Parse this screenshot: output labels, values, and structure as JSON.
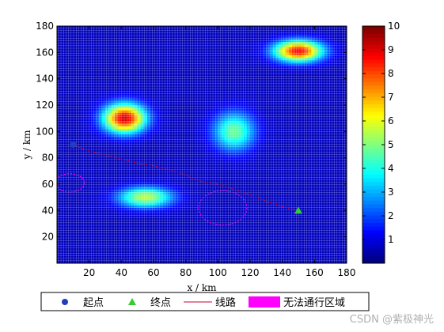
{
  "chart_data": {
    "type": "heatmap",
    "title": "",
    "xlabel": "x / km",
    "ylabel": "y / km",
    "xlim": [
      0,
      180
    ],
    "ylim": [
      0,
      180
    ],
    "xticks": [
      20,
      40,
      60,
      80,
      100,
      120,
      140,
      160,
      180
    ],
    "yticks": [
      20,
      40,
      60,
      80,
      100,
      120,
      140,
      160,
      180
    ],
    "grid": "dense white grid overlay",
    "colormap": "jet",
    "colorbar": {
      "min": 0,
      "max": 10,
      "ticks": [
        1,
        2,
        3,
        4,
        5,
        6,
        7,
        8,
        9,
        10
      ]
    },
    "peaks": [
      {
        "x": 42,
        "y": 110,
        "value": 9.2,
        "sx": 13,
        "sy": 11
      },
      {
        "x": 150,
        "y": 161,
        "value": 8.8,
        "sx": 15,
        "sy": 8
      },
      {
        "x": 110,
        "y": 100,
        "value": 4.8,
        "sx": 13,
        "sy": 15
      },
      {
        "x": 55,
        "y": 50,
        "value": 5.6,
        "sx": 17,
        "sy": 8
      }
    ],
    "start_point": {
      "x": 10,
      "y": 90
    },
    "end_point": {
      "x": 150,
      "y": 40
    },
    "route": {
      "x": [
        10,
        20,
        30,
        40,
        50,
        60,
        70,
        80,
        90,
        100,
        110,
        120,
        130,
        140,
        150
      ],
      "y": [
        90,
        85,
        82,
        79,
        76,
        74,
        71,
        67,
        62,
        60,
        56,
        52,
        47,
        43,
        40
      ]
    },
    "no_go_zones": [
      {
        "cx": 8,
        "cy": 61,
        "rx": 9,
        "ry": 7
      },
      {
        "cx": 103,
        "cy": 42,
        "rx": 15,
        "ry": 13
      }
    ],
    "legend": {
      "placement": "below plot",
      "entries": [
        {
          "marker": "circle",
          "color": "#1f3fbf",
          "label": "起点"
        },
        {
          "marker": "triangle",
          "color": "#33cc33",
          "label": "终点"
        },
        {
          "marker": "line",
          "color": "#cc0033",
          "label": "线路"
        },
        {
          "marker": "patch",
          "color": "#ff00ff",
          "label": "无法通行区域"
        }
      ]
    }
  },
  "watermark": "CSDN @紫极神光"
}
